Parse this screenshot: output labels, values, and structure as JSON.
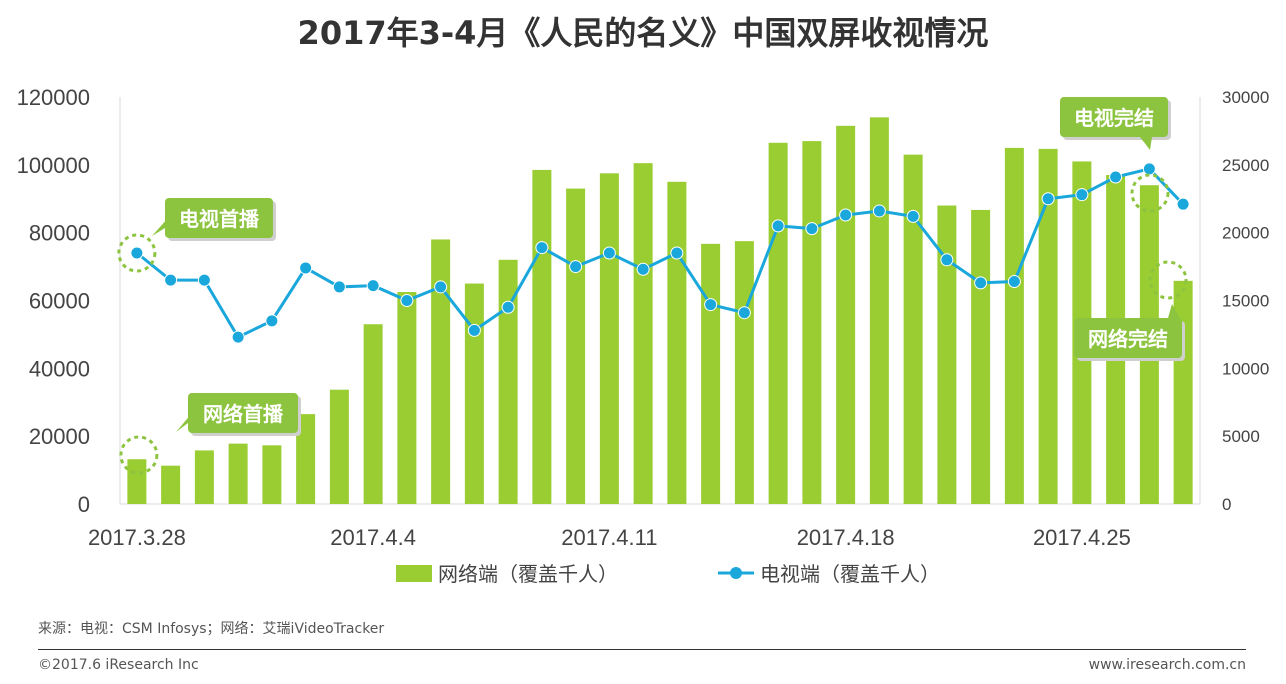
{
  "title": "2017年3-4月《人民的名义》中国双屏收视情况",
  "colors": {
    "bar": "#9ACD32",
    "line": "#1AA7DC",
    "callout": "#8CC43F",
    "axis": "#D9D9D9",
    "text": "#444444"
  },
  "chart_data": {
    "type": "bar+line",
    "title": "2017年3-4月《人民的名义》中国双屏收视情况",
    "x_tick_labels": [
      "2017.3.28",
      "2017.4.4",
      "2017.4.11",
      "2017.4.18",
      "2017.4.25"
    ],
    "y_left": {
      "range": [
        0,
        120000
      ],
      "ticks": [
        "0",
        "20000",
        "40000",
        "60000",
        "80000",
        "100000",
        "120000"
      ]
    },
    "y_right": {
      "range": [
        0,
        30000
      ],
      "ticks": [
        "0",
        "5000",
        "10000",
        "15000",
        "20000",
        "25000",
        "30000"
      ]
    },
    "series": [
      {
        "name": "网络端（覆盖千人）",
        "type": "bar",
        "axis": "left",
        "values": [
          13200,
          11300,
          15800,
          17800,
          17300,
          26500,
          33700,
          53000,
          62500,
          78000,
          65000,
          72000,
          98500,
          93000,
          97500,
          100500,
          95000,
          76700,
          77500,
          106500,
          107000,
          111500,
          114000,
          103000,
          88000,
          86700,
          105000,
          104700,
          101000,
          97000,
          94000,
          65800
        ]
      },
      {
        "name": "电视端（覆盖千人）",
        "type": "line",
        "axis": "right",
        "values": [
          18500,
          16500,
          16500,
          12300,
          13500,
          17400,
          16000,
          16100,
          15000,
          16000,
          12800,
          14500,
          18900,
          17500,
          18500,
          17300,
          18500,
          14700,
          14100,
          20500,
          20300,
          21300,
          21600,
          21200,
          18000,
          16300,
          16400,
          22500,
          22800,
          24100,
          24700,
          22100
        ]
      }
    ],
    "annotations": [
      "电视首播",
      "网络首播",
      "电视完结",
      "网络完结"
    ]
  },
  "legend": {
    "bar_label": "网络端（覆盖千人）",
    "line_label": "电视端（覆盖千人）"
  },
  "footer": {
    "source": "来源：电视：CSM Infosys；网络：艾瑞iVideoTracker",
    "copyright": "©2017.6 iResearch Inc",
    "url": "www.iresearch.com.cn"
  }
}
